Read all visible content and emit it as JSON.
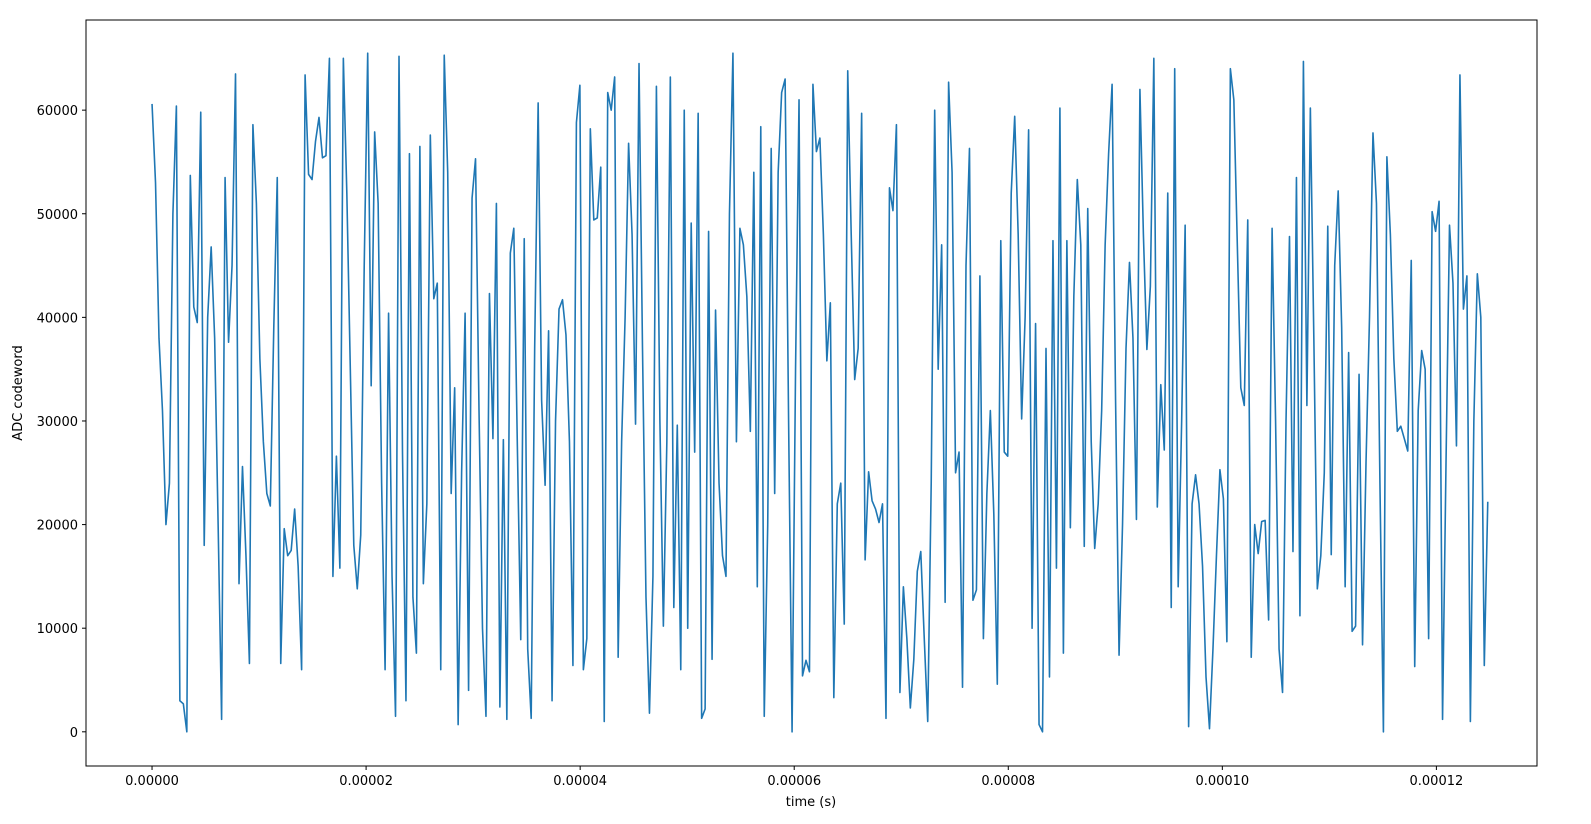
{
  "chart_data": {
    "type": "line",
    "xlabel": "time (s)",
    "ylabel": "ADC codeword",
    "color": "#1f77b4",
    "xlim": [
      -6.17e-06,
      0.0001294
    ],
    "ylim": [
      -3300,
      68700
    ],
    "xticks": [
      {
        "value": 0,
        "label": "0.00000"
      },
      {
        "value": 2e-05,
        "label": "0.00002"
      },
      {
        "value": 4e-05,
        "label": "0.00004"
      },
      {
        "value": 6e-05,
        "label": "0.00006"
      },
      {
        "value": 8e-05,
        "label": "0.00008"
      },
      {
        "value": 0.0001,
        "label": "0.00010"
      },
      {
        "value": 0.00012,
        "label": "0.00012"
      }
    ],
    "yticks": [
      0,
      10000,
      20000,
      30000,
      40000,
      50000,
      60000
    ],
    "x": [
      0.0,
      3.25e-07,
      6.5e-07,
      9.75e-07,
      1.3e-06,
      1.625e-06,
      1.95e-06,
      2.275e-06,
      2.6e-06,
      2.925e-06,
      3.25e-06,
      3.575e-06,
      3.9e-06,
      4.225e-06,
      4.55e-06,
      4.875e-06,
      5.2e-06,
      5.525e-06,
      5.85e-06,
      6.175e-06,
      6.5e-06,
      6.825e-06,
      7.15e-06,
      7.475e-06,
      7.8e-06,
      8.125e-06,
      8.45e-06,
      8.775e-06,
      9.1e-06,
      9.425e-06,
      9.75e-06,
      1.0075e-05,
      1.04e-05,
      1.0725e-05,
      1.105e-05,
      1.1375e-05,
      1.17e-05,
      1.2025e-05,
      1.235e-05,
      1.2675e-05,
      1.3e-05,
      1.3325e-05,
      1.365e-05,
      1.3975e-05,
      1.43e-05,
      1.4625e-05,
      1.495e-05,
      1.5275e-05,
      1.56e-05,
      1.5925e-05,
      1.625e-05,
      1.6575e-05,
      1.69e-05,
      1.7225e-05,
      1.755e-05,
      1.7875e-05,
      1.82e-05,
      1.8525e-05,
      1.885e-05,
      1.9175e-05,
      1.95e-05,
      1.9825e-05,
      2.015e-05,
      2.0475e-05,
      2.08e-05,
      2.1125e-05,
      2.145e-05,
      2.1775e-05,
      2.21e-05,
      2.2425e-05,
      2.275e-05,
      2.3075e-05,
      2.34e-05,
      2.3725e-05,
      2.405e-05,
      2.4375e-05,
      2.47e-05,
      2.5025e-05,
      2.535e-05,
      2.5675e-05,
      2.6e-05,
      2.6325e-05,
      2.665e-05,
      2.6975e-05,
      2.73e-05,
      2.7625e-05,
      2.795e-05,
      2.8275e-05,
      2.86e-05,
      2.8925e-05,
      2.925e-05,
      2.9575e-05,
      2.99e-05,
      3.0225e-05,
      3.055e-05,
      3.0875e-05,
      3.12e-05,
      3.1525e-05,
      3.185e-05,
      3.2175e-05,
      3.25e-05,
      3.2825e-05,
      3.315e-05,
      3.3475e-05,
      3.38e-05,
      3.4125e-05,
      3.445e-05,
      3.4775e-05,
      3.51e-05,
      3.5425e-05,
      3.575e-05,
      3.6075e-05,
      3.64e-05,
      3.6725e-05,
      3.705e-05,
      3.7375e-05,
      3.77e-05,
      3.8025e-05,
      3.835e-05,
      3.8675e-05,
      3.9e-05,
      3.9325e-05,
      3.965e-05,
      3.9975e-05,
      4.03e-05,
      4.0625e-05,
      4.095e-05,
      4.1275e-05,
      4.16e-05,
      4.1925e-05,
      4.225e-05,
      4.2575e-05,
      4.29e-05,
      4.3225e-05,
      4.355e-05,
      4.3875e-05,
      4.42e-05,
      4.4525e-05,
      4.485e-05,
      4.5175e-05,
      4.55e-05,
      4.5825e-05,
      4.615e-05,
      4.6475e-05,
      4.68e-05,
      4.7125e-05,
      4.745e-05,
      4.7775e-05,
      4.81e-05,
      4.8425e-05,
      4.875e-05,
      4.9075e-05,
      4.94e-05,
      4.9725e-05,
      5.005e-05,
      5.0375e-05,
      5.07e-05,
      5.1025e-05,
      5.135e-05,
      5.1675e-05,
      5.2e-05,
      5.2325e-05,
      5.265e-05,
      5.2975e-05,
      5.33e-05,
      5.3625e-05,
      5.395e-05,
      5.4275e-05,
      5.46e-05,
      5.4925e-05,
      5.525e-05,
      5.5575e-05,
      5.59e-05,
      5.6225e-05,
      5.655e-05,
      5.6875e-05,
      5.72e-05,
      5.7525e-05,
      5.785e-05,
      5.8175e-05,
      5.85e-05,
      5.8825e-05,
      5.915e-05,
      5.9475e-05,
      5.98e-05,
      6.0125e-05,
      6.045e-05,
      6.0775e-05,
      6.11e-05,
      6.1425e-05,
      6.175e-05,
      6.2075e-05,
      6.24e-05,
      6.2725e-05,
      6.305e-05,
      6.3375e-05,
      6.37e-05,
      6.4025e-05,
      6.435e-05,
      6.4675e-05,
      6.5e-05,
      6.5325e-05,
      6.565e-05,
      6.5975e-05,
      6.63e-05,
      6.6625e-05,
      6.695e-05,
      6.7275e-05,
      6.76e-05,
      6.7925e-05,
      6.825e-05,
      6.8575e-05,
      6.89e-05,
      6.9225e-05,
      6.955e-05,
      6.9875e-05,
      7.02e-05,
      7.0525e-05,
      7.085e-05,
      7.1175e-05,
      7.15e-05,
      7.1825e-05,
      7.215e-05,
      7.2475e-05,
      7.28e-05,
      7.3125e-05,
      7.345e-05,
      7.3775e-05,
      7.41e-05,
      7.4425e-05,
      7.475e-05,
      7.5075e-05,
      7.54e-05,
      7.5725e-05,
      7.605e-05,
      7.6375e-05,
      7.67e-05,
      7.7025e-05,
      7.735e-05,
      7.7675e-05,
      7.8e-05,
      7.8325e-05,
      7.865e-05,
      7.8975e-05,
      7.93e-05,
      7.9625e-05,
      7.995e-05,
      8.0275e-05,
      8.06e-05,
      8.0925e-05,
      8.125e-05,
      8.1575e-05,
      8.19e-05,
      8.2225e-05,
      8.255e-05,
      8.2875e-05,
      8.32e-05,
      8.3525e-05,
      8.385e-05,
      8.4175e-05,
      8.45e-05,
      8.4825e-05,
      8.515e-05,
      8.5475e-05,
      8.58e-05,
      8.6125e-05,
      8.645e-05,
      8.6775e-05,
      8.71e-05,
      8.7425e-05,
      8.775e-05,
      8.8075e-05,
      8.84e-05,
      8.8725e-05,
      8.905e-05,
      8.9375e-05,
      8.97e-05,
      9.0025e-05,
      9.035e-05,
      9.0675e-05,
      9.1e-05,
      9.1325e-05,
      9.165e-05,
      9.1975e-05,
      9.23e-05,
      9.2625e-05,
      9.295e-05,
      9.3275e-05,
      9.36e-05,
      9.3925e-05,
      9.425e-05,
      9.4575e-05,
      9.49e-05,
      9.5225e-05,
      9.555e-05,
      9.5875e-05,
      9.62e-05,
      9.6525e-05,
      9.685e-05,
      9.7175e-05,
      9.75e-05,
      9.7825e-05,
      9.815e-05,
      9.8475e-05,
      9.88e-05,
      9.9125e-05,
      9.945e-05,
      9.9775e-05,
      0.0001001,
      0.000100425,
      0.00010075,
      0.000101075,
      0.0001014,
      0.000101725,
      0.00010205,
      0.000102375,
      0.0001027,
      0.000103025,
      0.00010335,
      0.000103675,
      0.000104,
      0.000104325,
      0.00010465,
      0.000104975,
      0.0001053,
      0.000105625,
      0.00010595,
      0.000106275,
      0.0001066,
      0.000106925,
      0.00010725,
      0.000107575,
      0.0001079,
      0.000108225,
      0.00010855,
      0.000108875,
      0.0001092,
      0.000109525,
      0.00010985,
      0.000110175,
      0.0001105,
      0.000110825,
      0.00011115,
      0.000111475,
      0.0001118,
      0.000112125,
      0.00011245,
      0.000112775,
      0.0001131,
      0.000113425,
      0.00011375,
      0.000114075,
      0.0001144,
      0.000114725,
      0.00011505,
      0.000115375,
      0.0001157,
      0.000116025,
      0.00011635,
      0.000116675,
      0.000117,
      0.000117325,
      0.00011765,
      0.000117975,
      0.0001183,
      0.000118625,
      0.00011895,
      0.000119275,
      0.0001196,
      0.000119925,
      0.00012025,
      0.000120575,
      0.0001209,
      0.000121225,
      0.00012155,
      0.000121875,
      0.0001222,
      0.000122525,
      0.00012285,
      0.000123175,
      0.0001235,
      0.000123825,
      0.00012415,
      0.000124475,
      0.0001248
    ],
    "values": [
      60600,
      53000,
      38000,
      31000,
      20000,
      24000,
      50000,
      60400,
      3000,
      2700,
      0,
      53700,
      41000,
      39500,
      59800,
      18000,
      40000,
      46800,
      38000,
      20000,
      1200,
      53500,
      37600,
      45000,
      63500,
      14300,
      25600,
      17000,
      6600,
      58600,
      51000,
      36000,
      28000,
      23000,
      21800,
      39000,
      53500,
      6600,
      19600,
      17000,
      17500,
      21500,
      16000,
      6000,
      63400,
      53800,
      53300,
      57000,
      59300,
      55400,
      55600,
      65000,
      15000,
      26600,
      15800,
      65000,
      52000,
      35000,
      18000,
      13800,
      19000,
      45000,
      65500,
      33400,
      57900,
      51000,
      24000,
      6000,
      40400,
      15000,
      1500,
      65200,
      27000,
      3000,
      55800,
      13000,
      7600,
      56500,
      14300,
      22000,
      57600,
      41800,
      43300,
      6000,
      65300,
      54000,
      23000,
      33200,
      700,
      25000,
      40400,
      4000,
      51500,
      55300,
      31000,
      10000,
      1500,
      42300,
      28300,
      51000,
      2400,
      28200,
      1200,
      46200,
      48600,
      28000,
      8900,
      47600,
      8000,
      1300,
      37000,
      60700,
      32000,
      23800,
      38700,
      3000,
      30000,
      40800,
      41700,
      38300,
      28000,
      6400,
      58800,
      62400,
      6000,
      9000,
      58200,
      49400,
      49600,
      54500,
      1000,
      61700,
      60000,
      63200,
      7200,
      28000,
      40000,
      56800,
      48000,
      29700,
      64500,
      37000,
      13000,
      1800,
      15000,
      62300,
      30000,
      10200,
      28000,
      63200,
      12000,
      29600,
      6000,
      60000,
      10000,
      49100,
      27000,
      59700,
      1300,
      2200,
      48300,
      7000,
      40700,
      24000,
      17000,
      15000,
      50000,
      65500,
      28000,
      48600,
      47000,
      42000,
      29000,
      54000,
      14000,
      58400,
      1500,
      20000,
      56300,
      23000,
      54000,
      61700,
      63000,
      30000,
      0,
      35000,
      61000,
      5400,
      6900,
      5800,
      62500,
      56000,
      57300,
      48000,
      35800,
      41400,
      3300,
      22000,
      24000,
      10400,
      63800,
      48000,
      34000,
      37000,
      59700,
      16600,
      25100,
      22300,
      21500,
      20200,
      22000,
      1300,
      52500,
      50300,
      58600,
      3800,
      14000,
      9000,
      2300,
      7000,
      15500,
      17400,
      9000,
      1000,
      24000,
      60000,
      35000,
      47000,
      12500,
      62700,
      54000,
      25000,
      27000,
      4300,
      45000,
      56300,
      12700,
      13700,
      44000,
      9000,
      23000,
      31000,
      21000,
      4600,
      47400,
      27000,
      26600,
      52000,
      59400,
      48000,
      30200,
      40000,
      58100,
      10000,
      39400,
      700,
      0,
      37000,
      5300,
      47400,
      15800,
      60200,
      7600,
      47400,
      19700,
      42000,
      53300,
      47000,
      17900,
      50500,
      28000,
      17700,
      22000,
      31000,
      47000,
      55800,
      62500,
      32000,
      7400,
      20000,
      37000,
      45300,
      38000,
      20500,
      62000,
      48000,
      36900,
      43000,
      65000,
      21700,
      33500,
      27200,
      52000,
      12000,
      64000,
      14000,
      30000,
      48900,
      500,
      22000,
      24800,
      22000,
      16000,
      5300,
      300,
      8000,
      17000,
      25300,
      22500,
      8700,
      64000,
      61000,
      47000,
      33200,
      31500,
      49400,
      7200,
      20000,
      17200,
      20300,
      20400,
      10800,
      48600,
      30000,
      8000,
      3800,
      30000,
      47800,
      17400,
      53500,
      11200,
      64700,
      31500,
      60200,
      38000,
      13800,
      17000,
      25000,
      48800,
      17100,
      45000,
      52200,
      39000,
      14000,
      36600,
      9700,
      10200,
      34500,
      8400,
      26000,
      40000,
      57800,
      51000,
      24000,
      0,
      55500,
      48000,
      36000,
      29000,
      29500,
      28300,
      27100,
      45500,
      6300,
      31000,
      36800,
      35000,
      9000,
      50200,
      48300,
      51200,
      1200,
      26000,
      48900,
      43300,
      27600,
      63400,
      40800,
      44000,
      1000,
      30000,
      44200,
      40000,
      6400,
      22200
    ]
  }
}
